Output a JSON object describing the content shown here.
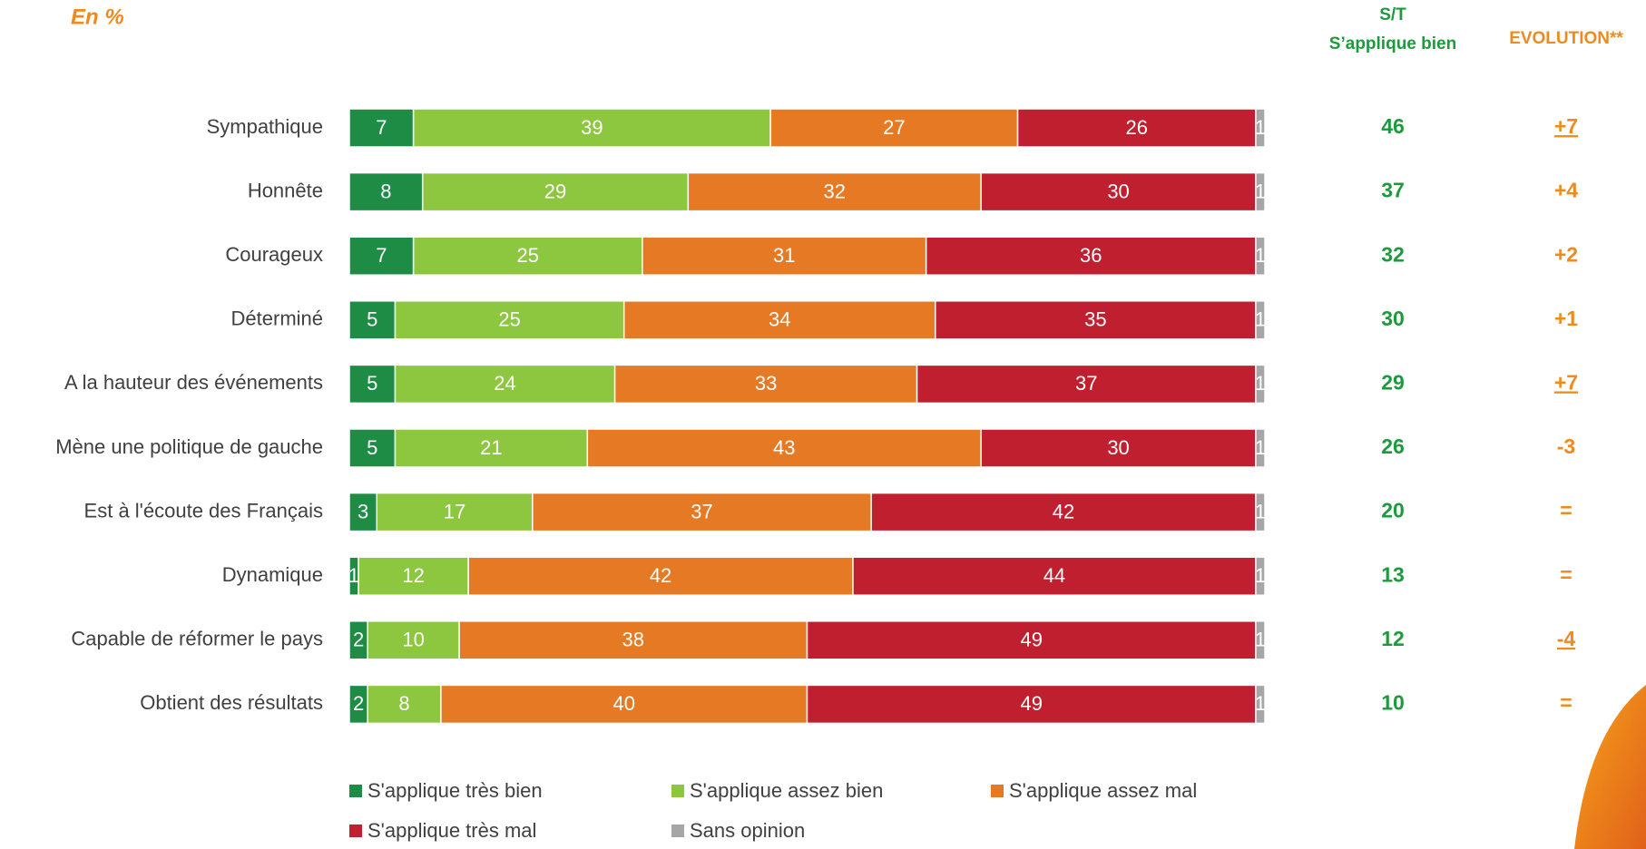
{
  "chart_data": {
    "type": "stacked-barh",
    "subtitle": "En %",
    "categories": [
      "Sympathique",
      "Honnête",
      "Courageux",
      "Déterminé",
      "A la hauteur des événements",
      "Mène une politique de gauche",
      "Est à l'écoute des Français",
      "Dynamique",
      "Capable de réformer le pays",
      "Obtient des résultats"
    ],
    "series": [
      {
        "name": "S'applique très bien",
        "color": "#1e8c45",
        "values": [
          7,
          8,
          7,
          5,
          5,
          5,
          3,
          1,
          2,
          2
        ]
      },
      {
        "name": "S'applique assez bien",
        "color": "#8dc63f",
        "values": [
          39,
          29,
          25,
          25,
          24,
          21,
          17,
          12,
          10,
          8
        ]
      },
      {
        "name": "S'applique assez mal",
        "color": "#e67a24",
        "values": [
          27,
          32,
          31,
          34,
          33,
          43,
          37,
          42,
          38,
          40
        ]
      },
      {
        "name": "S'applique très mal",
        "color": "#c01f2f",
        "values": [
          26,
          30,
          36,
          35,
          37,
          30,
          42,
          44,
          49,
          49
        ]
      },
      {
        "name": "Sans opinion",
        "color": "#a6a6a6",
        "values": [
          1,
          1,
          1,
          1,
          1,
          1,
          1,
          1,
          1,
          1
        ]
      }
    ],
    "xlim": [
      0,
      100
    ],
    "total_column": {
      "title": [
        "S/T",
        "S’applique bien"
      ],
      "color": "#1e9a3e",
      "values": [
        46,
        37,
        32,
        30,
        29,
        26,
        20,
        13,
        12,
        10
      ]
    },
    "evolution_column": {
      "title": "EVOLUTION**",
      "color": "#ee8a1e",
      "values": [
        7,
        4,
        2,
        1,
        7,
        -3,
        0,
        0,
        -4,
        0
      ],
      "value_labels": [
        "+7",
        "+4",
        "+2",
        "+1",
        "+7",
        "-3",
        "=",
        "=",
        "-4",
        "="
      ],
      "underlined": [
        true,
        false,
        false,
        false,
        true,
        false,
        false,
        false,
        true,
        false
      ]
    }
  }
}
